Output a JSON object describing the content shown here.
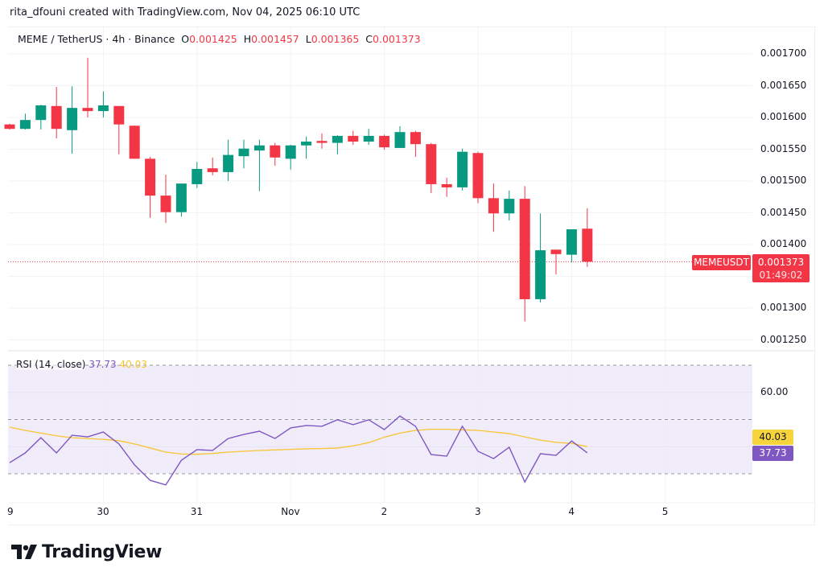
{
  "header": {
    "credit": "rita_dfouni created with TradingView.com, Nov 04, 2025 06:10 UTC"
  },
  "legend": {
    "symbol": "MEME / TetherUS · 4h · Binance",
    "o_label": "O",
    "o": "0.001425",
    "h_label": "H",
    "h": "0.001457",
    "l_label": "L",
    "l": "0.001365",
    "c_label": "C",
    "c": "0.001373"
  },
  "price_tag": {
    "ticker": "MEMEUSDT",
    "price": "0.001373",
    "countdown": "01:49:02"
  },
  "rsi_legend": {
    "label": "RSI (14, close)",
    "rsi": "37.73",
    "ma": "40.03"
  },
  "rsi_axis": {
    "tick": "60.00",
    "ma_tag": "40.03",
    "rsi_tag": "37.73"
  },
  "colors": {
    "up": "#089981",
    "down": "#f23645",
    "rsi": "#7e57c2",
    "rsi_ma": "#f7c531",
    "rsi_band": "#ede7f8"
  },
  "brand": {
    "name": "TradingView"
  },
  "chart_data": [
    {
      "type": "candlestick",
      "timeframe": "4h",
      "x_tick_labels": [
        "9",
        "30",
        "31",
        "Nov",
        "2",
        "3",
        "4",
        "5"
      ],
      "y_tick_labels": [
        "0.001700",
        "0.001650",
        "0.001600",
        "0.001550",
        "0.001500",
        "0.001450",
        "0.001400",
        "0.001300",
        "0.001250"
      ],
      "ylim": [
        0.00123,
        0.00172
      ],
      "last_price": 0.001373,
      "ohlc": [
        [
          0.001589,
          0.00159,
          0.001581,
          0.001582
        ],
        [
          0.001582,
          0.001606,
          0.001581,
          0.001596
        ],
        [
          0.001596,
          0.00162,
          0.001581,
          0.001619
        ],
        [
          0.001618,
          0.001648,
          0.001567,
          0.001582
        ],
        [
          0.00158,
          0.001649,
          0.001543,
          0.001615
        ],
        [
          0.001615,
          0.001694,
          0.0016,
          0.00161
        ],
        [
          0.00161,
          0.001641,
          0.0016,
          0.001619
        ],
        [
          0.001618,
          0.001618,
          0.001542,
          0.001589
        ],
        [
          0.001587,
          0.001587,
          0.001535,
          0.001535
        ],
        [
          0.001535,
          0.001538,
          0.001442,
          0.001477
        ],
        [
          0.001477,
          0.00151,
          0.001434,
          0.001451
        ],
        [
          0.001451,
          0.001496,
          0.001444,
          0.001496
        ],
        [
          0.001495,
          0.00153,
          0.001489,
          0.001519
        ],
        [
          0.00152,
          0.001537,
          0.001509,
          0.001514
        ],
        [
          0.001514,
          0.001565,
          0.0015,
          0.001541
        ],
        [
          0.001539,
          0.001565,
          0.00152,
          0.001551
        ],
        [
          0.001548,
          0.001565,
          0.001484,
          0.001556
        ],
        [
          0.001556,
          0.00156,
          0.001524,
          0.001537
        ],
        [
          0.001535,
          0.001557,
          0.001518,
          0.001556
        ],
        [
          0.001556,
          0.00157,
          0.001535,
          0.001562
        ],
        [
          0.001563,
          0.001575,
          0.001551,
          0.00156
        ],
        [
          0.00156,
          0.001572,
          0.001542,
          0.001571
        ],
        [
          0.001571,
          0.001579,
          0.001557,
          0.001562
        ],
        [
          0.001562,
          0.001582,
          0.001557,
          0.001571
        ],
        [
          0.001571,
          0.001573,
          0.001549,
          0.001553
        ],
        [
          0.001552,
          0.001586,
          0.001552,
          0.001577
        ],
        [
          0.001577,
          0.001579,
          0.001538,
          0.001558
        ],
        [
          0.001558,
          0.00156,
          0.001481,
          0.001495
        ],
        [
          0.001495,
          0.001505,
          0.001475,
          0.00149
        ],
        [
          0.00149,
          0.001551,
          0.001485,
          0.001546
        ],
        [
          0.001544,
          0.001546,
          0.001465,
          0.001473
        ],
        [
          0.001473,
          0.001496,
          0.00142,
          0.001449
        ],
        [
          0.001449,
          0.001485,
          0.001438,
          0.001472
        ],
        [
          0.001472,
          0.001492,
          0.001279,
          0.001314
        ],
        [
          0.001314,
          0.001449,
          0.001309,
          0.001391
        ],
        [
          0.001392,
          0.001392,
          0.001353,
          0.001385
        ],
        [
          0.001384,
          0.001424,
          0.001372,
          0.001424
        ],
        [
          0.001425,
          0.001457,
          0.001365,
          0.001373
        ]
      ]
    },
    {
      "type": "line",
      "title": "RSI (14, close)",
      "ylim": [
        20,
        80
      ],
      "bands": [
        30,
        50,
        70
      ],
      "y_tick_labels": [
        "60.00"
      ],
      "series": [
        {
          "name": "RSI",
          "values": [
            34.1,
            37.7,
            43.3,
            37.7,
            44.2,
            43.6,
            45.4,
            41.0,
            33.3,
            27.6,
            25.9,
            35.0,
            38.9,
            38.6,
            43.0,
            44.5,
            45.7,
            43.0,
            46.9,
            47.8,
            47.5,
            49.9,
            48.1,
            49.9,
            46.3,
            51.3,
            47.5,
            37.1,
            36.5,
            47.5,
            38.3,
            35.6,
            39.8,
            27.0,
            37.4,
            36.8,
            42.1,
            37.73
          ]
        },
        {
          "name": "RSI MA",
          "values": [
            47.2,
            46.0,
            45.0,
            44.0,
            43.3,
            43.0,
            42.7,
            42.2,
            41.0,
            39.5,
            38.0,
            37.3,
            37.2,
            37.5,
            38.0,
            38.3,
            38.6,
            38.8,
            39.0,
            39.2,
            39.3,
            39.5,
            40.3,
            41.5,
            43.5,
            45.0,
            46.0,
            46.4,
            46.4,
            46.2,
            46.0,
            45.4,
            44.8,
            43.6,
            42.4,
            41.6,
            41.2,
            40.03
          ]
        }
      ]
    }
  ]
}
